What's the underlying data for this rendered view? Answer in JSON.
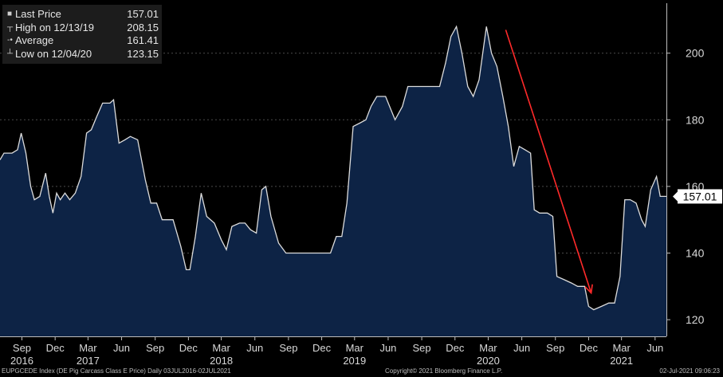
{
  "legend": [
    {
      "marker": "square",
      "label": "Last Price",
      "value": "157.01"
    },
    {
      "marker": "high",
      "label": "High on 12/13/19",
      "value": "208.15"
    },
    {
      "marker": "average",
      "label": "Average",
      "value": "161.41"
    },
    {
      "marker": "low",
      "label": "Low on 12/04/20",
      "value": "123.15"
    }
  ],
  "last_price_tag": "157.01",
  "footer": {
    "left": "EUPGCEDE Index (DE Pig Carcass Class E Price)  Daily 03JUL2016-02JUL2021",
    "center": "Copyright© 2021 Bloomberg Finance L.P.",
    "right": "02-Jul-2021 09:06:23"
  },
  "colors": {
    "area_fill": "#0d2345",
    "line": "#dcdcdc",
    "arrow": "#ff2a2a",
    "background": "#000000"
  },
  "chart_data": {
    "type": "area",
    "title": "",
    "ylim": [
      115,
      215
    ],
    "yticks": [
      120,
      140,
      160,
      180,
      200
    ],
    "y_axis_side": "right",
    "grid": "horizontal dashed",
    "x_ticks": [
      {
        "label": "Sep",
        "date": "2016-09-01"
      },
      {
        "label": "Dec",
        "date": "2016-12-01"
      },
      {
        "label": "Mar",
        "date": "2017-03-01"
      },
      {
        "label": "Jun",
        "date": "2017-06-01"
      },
      {
        "label": "Sep",
        "date": "2017-09-01"
      },
      {
        "label": "Dec",
        "date": "2017-12-01"
      },
      {
        "label": "Mar",
        "date": "2018-03-01"
      },
      {
        "label": "Jun",
        "date": "2018-06-01"
      },
      {
        "label": "Sep",
        "date": "2018-09-01"
      },
      {
        "label": "Dec",
        "date": "2018-12-01"
      },
      {
        "label": "Mar",
        "date": "2019-03-01"
      },
      {
        "label": "Jun",
        "date": "2019-06-01"
      },
      {
        "label": "Sep",
        "date": "2019-09-01"
      },
      {
        "label": "Dec",
        "date": "2019-12-01"
      },
      {
        "label": "Mar",
        "date": "2020-03-01"
      },
      {
        "label": "Jun",
        "date": "2020-06-01"
      },
      {
        "label": "Sep",
        "date": "2020-09-01"
      },
      {
        "label": "Dec",
        "date": "2020-12-01"
      },
      {
        "label": "Mar",
        "date": "2021-03-01"
      },
      {
        "label": "Jun",
        "date": "2021-06-01"
      }
    ],
    "year_labels": [
      {
        "label": "2016",
        "date": "2016-09-01"
      },
      {
        "label": "2017",
        "date": "2017-03-01"
      },
      {
        "label": "2018",
        "date": "2018-03-01"
      },
      {
        "label": "2019",
        "date": "2019-03-01"
      },
      {
        "label": "2020",
        "date": "2020-03-01"
      },
      {
        "label": "2021",
        "date": "2021-03-01"
      }
    ],
    "x_range": [
      "2016-07-03",
      "2021-07-02"
    ],
    "series": [
      {
        "values": [
          [
            "2016-07-03",
            168
          ],
          [
            "2016-07-14",
            170
          ],
          [
            "2016-08-05",
            170
          ],
          [
            "2016-08-20",
            171
          ],
          [
            "2016-08-30",
            176
          ],
          [
            "2016-09-12",
            170
          ],
          [
            "2016-09-25",
            160
          ],
          [
            "2016-10-05",
            156
          ],
          [
            "2016-10-20",
            157
          ],
          [
            "2016-11-05",
            164
          ],
          [
            "2016-11-15",
            157
          ],
          [
            "2016-11-25",
            152
          ],
          [
            "2016-12-05",
            158
          ],
          [
            "2016-12-15",
            156
          ],
          [
            "2016-12-28",
            158
          ],
          [
            "2017-01-10",
            156
          ],
          [
            "2017-01-25",
            158
          ],
          [
            "2017-02-10",
            163
          ],
          [
            "2017-02-25",
            176
          ],
          [
            "2017-03-10",
            177
          ],
          [
            "2017-03-25",
            181
          ],
          [
            "2017-04-10",
            185
          ],
          [
            "2017-04-30",
            185
          ],
          [
            "2017-05-10",
            186
          ],
          [
            "2017-05-25",
            173
          ],
          [
            "2017-06-10",
            174
          ],
          [
            "2017-06-25",
            175
          ],
          [
            "2017-07-15",
            174
          ],
          [
            "2017-08-05",
            162
          ],
          [
            "2017-08-20",
            155
          ],
          [
            "2017-09-05",
            155
          ],
          [
            "2017-09-20",
            150
          ],
          [
            "2017-10-20",
            150
          ],
          [
            "2017-11-10",
            142
          ],
          [
            "2017-11-25",
            135
          ],
          [
            "2017-12-05",
            135
          ],
          [
            "2017-12-20",
            145
          ],
          [
            "2018-01-05",
            158
          ],
          [
            "2018-01-20",
            151
          ],
          [
            "2018-02-10",
            149
          ],
          [
            "2018-03-01",
            144
          ],
          [
            "2018-03-15",
            141
          ],
          [
            "2018-03-30",
            148
          ],
          [
            "2018-04-20",
            149
          ],
          [
            "2018-05-05",
            149
          ],
          [
            "2018-05-20",
            147
          ],
          [
            "2018-06-05",
            146
          ],
          [
            "2018-06-20",
            159
          ],
          [
            "2018-07-01",
            160
          ],
          [
            "2018-07-15",
            151
          ],
          [
            "2018-08-05",
            143
          ],
          [
            "2018-08-25",
            140
          ],
          [
            "2018-09-15",
            140
          ],
          [
            "2018-10-10",
            140
          ],
          [
            "2018-11-05",
            140
          ],
          [
            "2018-11-25",
            140
          ],
          [
            "2018-12-10",
            140
          ],
          [
            "2018-12-25",
            140
          ],
          [
            "2019-01-10",
            145
          ],
          [
            "2019-01-25",
            145
          ],
          [
            "2019-02-08",
            155
          ],
          [
            "2019-02-25",
            178
          ],
          [
            "2019-03-15",
            179
          ],
          [
            "2019-04-01",
            180
          ],
          [
            "2019-04-15",
            184
          ],
          [
            "2019-05-01",
            187
          ],
          [
            "2019-05-25",
            187
          ],
          [
            "2019-06-05",
            184
          ],
          [
            "2019-06-20",
            180
          ],
          [
            "2019-07-10",
            184
          ],
          [
            "2019-07-25",
            190
          ],
          [
            "2019-08-10",
            190
          ],
          [
            "2019-09-01",
            190
          ],
          [
            "2019-10-01",
            190
          ],
          [
            "2019-10-20",
            190
          ],
          [
            "2019-11-05",
            197
          ],
          [
            "2019-11-20",
            205
          ],
          [
            "2019-12-05",
            208
          ],
          [
            "2019-12-20",
            200
          ],
          [
            "2020-01-05",
            190
          ],
          [
            "2020-01-20",
            187
          ],
          [
            "2020-02-05",
            192
          ],
          [
            "2020-02-25",
            208
          ],
          [
            "2020-03-10",
            200
          ],
          [
            "2020-03-25",
            196
          ],
          [
            "2020-04-10",
            187
          ],
          [
            "2020-04-25",
            178
          ],
          [
            "2020-05-10",
            166
          ],
          [
            "2020-05-25",
            172
          ],
          [
            "2020-06-10",
            171
          ],
          [
            "2020-06-25",
            170
          ],
          [
            "2020-07-05",
            153
          ],
          [
            "2020-07-20",
            152
          ],
          [
            "2020-08-10",
            152
          ],
          [
            "2020-08-25",
            151
          ],
          [
            "2020-09-05",
            133
          ],
          [
            "2020-09-25",
            132
          ],
          [
            "2020-10-15",
            131
          ],
          [
            "2020-11-01",
            130
          ],
          [
            "2020-11-20",
            130
          ],
          [
            "2020-12-01",
            124
          ],
          [
            "2020-12-15",
            123
          ],
          [
            "2021-01-05",
            124
          ],
          [
            "2021-01-25",
            125
          ],
          [
            "2021-02-10",
            125
          ],
          [
            "2021-02-25",
            133
          ],
          [
            "2021-03-10",
            156
          ],
          [
            "2021-03-25",
            156
          ],
          [
            "2021-04-10",
            155
          ],
          [
            "2021-04-25",
            150
          ],
          [
            "2021-05-05",
            148
          ],
          [
            "2021-05-20",
            159
          ],
          [
            "2021-06-05",
            163
          ],
          [
            "2021-06-15",
            157
          ],
          [
            "2021-07-02",
            157
          ]
        ]
      }
    ],
    "annotations": [
      {
        "type": "arrow",
        "from": [
          "2020-04-18",
          207
        ],
        "to": [
          "2020-12-08",
          128
        ]
      }
    ]
  }
}
